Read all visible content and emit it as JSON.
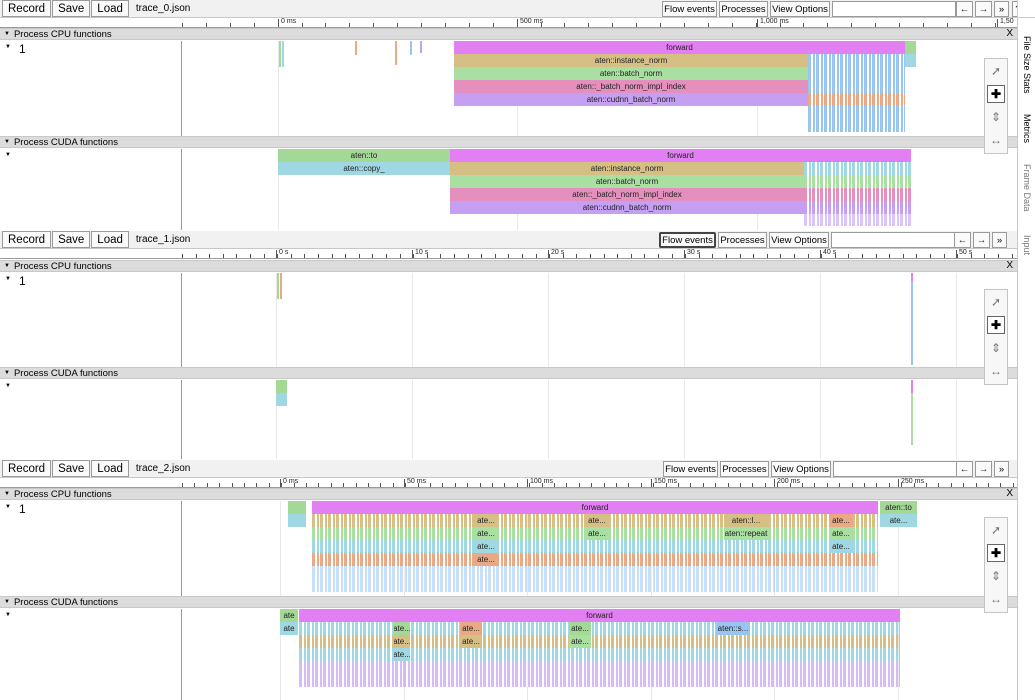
{
  "toolbar": {
    "record": "Record",
    "save": "Save",
    "load": "Load",
    "flow_events": "Flow events",
    "processes": "Processes",
    "view_options": "View Options",
    "nav_left": "←",
    "nav_right": "→",
    "more": "»",
    "help": "?"
  },
  "traces": [
    {
      "file": "trace_0.json",
      "ticks": [
        "0 ms",
        "500 ms",
        "1,000 ms",
        "1,50"
      ],
      "cpu_header": "Process CPU functions",
      "cuda_header": "Process CUDA functions",
      "thread": "1",
      "close": "X",
      "cpu_bars": [
        "forward",
        "aten::instance_norm",
        "aten::batch_norm",
        "aten::_batch_norm_impl_index",
        "aten::cudnn_batch_norm"
      ],
      "cuda_bars": [
        "aten::to",
        "aten::copy_",
        "forward",
        "aten::instance_norm",
        "aten::batch_norm",
        "aten::_batch_norm_impl_index",
        "aten::cudnn_batch_norm"
      ]
    },
    {
      "file": "trace_1.json",
      "ticks": [
        "0 s",
        "10 s",
        "20 s",
        "30 s",
        "40 s",
        "50 s"
      ],
      "cpu_header": "Process CPU functions",
      "cuda_header": "Process CUDA functions",
      "thread": "1",
      "close": "X"
    },
    {
      "file": "trace_2.json",
      "ticks": [
        "0 ms",
        "50 ms",
        "100 ms",
        "150 ms",
        "200 ms",
        "250 ms"
      ],
      "cpu_header": "Process CPU functions",
      "cuda_header": "Process CUDA functions",
      "thread": "1",
      "close": "X",
      "cpu_labels": {
        "forward": "forward",
        "to": "aten::to",
        "ate": "ate...",
        "atel": "aten::l...",
        "repeat": "aten::repeat"
      },
      "cuda_labels": {
        "forward": "forward",
        "ate": "ate",
        "atedots": "ate...",
        "aten_s": "aten::s..."
      }
    }
  ],
  "side_tabs": [
    "File Size Stats",
    "Metrics",
    "Frame Data",
    "Input"
  ],
  "colors": {
    "forward": "#e27ff2",
    "instance_norm": "#d6bf85",
    "batch_norm": "#a9dfa0",
    "impl_index": "#e58fbe",
    "cudnn": "#c5a0f2",
    "to": "#a3d896",
    "copy": "#9fd8e2",
    "blue": "#9ac5f0",
    "orange": "#e8a984"
  }
}
